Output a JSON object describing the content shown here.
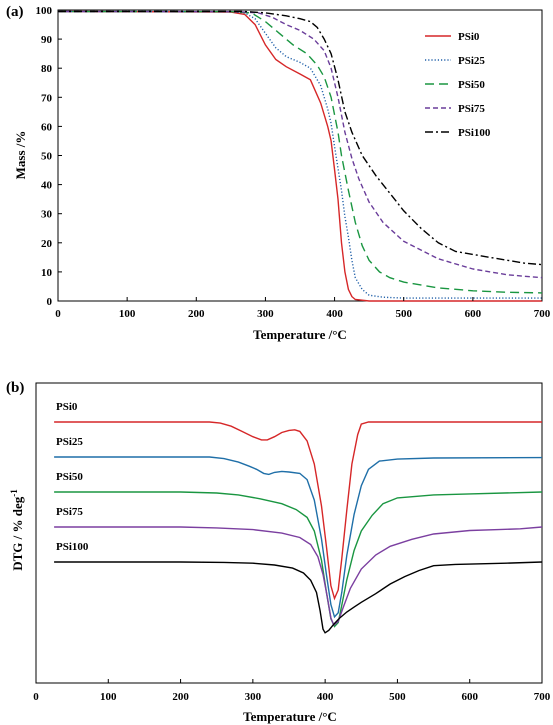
{
  "chart_data": [
    {
      "panel": "(a)",
      "type": "line",
      "xlabel": "Temperature /°C",
      "ylabel": "Mass /%",
      "xlim": [
        0,
        700
      ],
      "ylim": [
        0,
        100
      ],
      "xticks": [
        "0",
        "100",
        "200",
        "300",
        "400",
        "500",
        "600",
        "700"
      ],
      "yticks": [
        "0",
        "10",
        "20",
        "30",
        "40",
        "50",
        "60",
        "70",
        "80",
        "90",
        "100"
      ],
      "grid": false,
      "legend_position": "top-right",
      "series": [
        {
          "name": "PSi0",
          "color": "#d62728",
          "dash": "solid",
          "points": [
            [
              0,
              99.5
            ],
            [
              250,
              99.3
            ],
            [
              270,
              98.5
            ],
            [
              285,
              95
            ],
            [
              300,
              88
            ],
            [
              315,
              83
            ],
            [
              330,
              80.5
            ],
            [
              350,
              78
            ],
            [
              365,
              76
            ],
            [
              380,
              68
            ],
            [
              390,
              60
            ],
            [
              395,
              55
            ],
            [
              400,
              45
            ],
            [
              405,
              35
            ],
            [
              410,
              20
            ],
            [
              415,
              10
            ],
            [
              420,
              4
            ],
            [
              425,
              1.5
            ],
            [
              430,
              0.5
            ],
            [
              450,
              0
            ],
            [
              700,
              0
            ]
          ]
        },
        {
          "name": "PSi25",
          "color": "#1f5fa8",
          "dash": "1.2 2",
          "points": [
            [
              0,
              99.5
            ],
            [
              250,
              99.4
            ],
            [
              270,
              99
            ],
            [
              285,
              97
            ],
            [
              300,
              92
            ],
            [
              315,
              87
            ],
            [
              330,
              84
            ],
            [
              350,
              82
            ],
            [
              365,
              80
            ],
            [
              380,
              74
            ],
            [
              390,
              66
            ],
            [
              395,
              61
            ],
            [
              400,
              53
            ],
            [
              410,
              38
            ],
            [
              415,
              29
            ],
            [
              420,
              22
            ],
            [
              425,
              14
            ],
            [
              430,
              8
            ],
            [
              440,
              4
            ],
            [
              450,
              2
            ],
            [
              470,
              1.3
            ],
            [
              500,
              1
            ],
            [
              700,
              1
            ]
          ]
        },
        {
          "name": "PSi50",
          "color": "#1a9641",
          "dash": "9 5",
          "points": [
            [
              0,
              99.5
            ],
            [
              250,
              99.4
            ],
            [
              280,
              99
            ],
            [
              300,
              96
            ],
            [
              320,
              92
            ],
            [
              340,
              88
            ],
            [
              360,
              85
            ],
            [
              375,
              81
            ],
            [
              385,
              77
            ],
            [
              395,
              70
            ],
            [
              405,
              58
            ],
            [
              410,
              50
            ],
            [
              420,
              38
            ],
            [
              430,
              27
            ],
            [
              440,
              19
            ],
            [
              450,
              14
            ],
            [
              465,
              10
            ],
            [
              480,
              8
            ],
            [
              500,
              6.5
            ],
            [
              550,
              4.5
            ],
            [
              600,
              3.5
            ],
            [
              650,
              3
            ],
            [
              700,
              2.8
            ]
          ]
        },
        {
          "name": "PSi75",
          "color": "#6a3d9a",
          "dash": "5 3",
          "points": [
            [
              0,
              99.5
            ],
            [
              260,
              99.4
            ],
            [
              290,
              99
            ],
            [
              310,
              97.5
            ],
            [
              330,
              95
            ],
            [
              350,
              93
            ],
            [
              370,
              90
            ],
            [
              385,
              86
            ],
            [
              395,
              80
            ],
            [
              405,
              70
            ],
            [
              415,
              58
            ],
            [
              425,
              49
            ],
            [
              435,
              42
            ],
            [
              450,
              34
            ],
            [
              470,
              27
            ],
            [
              500,
              20.5
            ],
            [
              550,
              14.5
            ],
            [
              600,
              11
            ],
            [
              650,
              9
            ],
            [
              700,
              8
            ]
          ]
        },
        {
          "name": "PSi100",
          "color": "#000000",
          "dash": "8 3 2 3",
          "points": [
            [
              0,
              99.5
            ],
            [
              270,
              99.5
            ],
            [
              300,
              99
            ],
            [
              330,
              98
            ],
            [
              350,
              97
            ],
            [
              365,
              96
            ],
            [
              375,
              94
            ],
            [
              385,
              90
            ],
            [
              395,
              85
            ],
            [
              405,
              76
            ],
            [
              415,
              65
            ],
            [
              425,
              58
            ],
            [
              440,
              50
            ],
            [
              460,
              43
            ],
            [
              480,
              37
            ],
            [
              500,
              31
            ],
            [
              525,
              25
            ],
            [
              550,
              20
            ],
            [
              575,
              17
            ],
            [
              600,
              16
            ],
            [
              625,
              15
            ],
            [
              650,
              14
            ],
            [
              675,
              13
            ],
            [
              700,
              12.5
            ]
          ]
        }
      ]
    },
    {
      "panel": "(b)",
      "type": "line",
      "xlabel": "Temperature /°C",
      "ylabel": "DTG / % deg",
      "ylabel_sup": "-1",
      "xlim": [
        0,
        700
      ],
      "xticks": [
        "0",
        "100",
        "200",
        "300",
        "400",
        "500",
        "600",
        "700"
      ],
      "yticks_shown": false,
      "grid": false,
      "series": [
        {
          "name": "PSi0",
          "color": "#d62728",
          "points": [
            [
              25,
              0
            ],
            [
              240,
              0
            ],
            [
              255,
              -0.5
            ],
            [
              270,
              -2
            ],
            [
              285,
              -4.5
            ],
            [
              300,
              -7
            ],
            [
              312,
              -8.5
            ],
            [
              320,
              -8.5
            ],
            [
              330,
              -7
            ],
            [
              340,
              -5
            ],
            [
              350,
              -4
            ],
            [
              358,
              -3.7
            ],
            [
              365,
              -4.5
            ],
            [
              375,
              -9
            ],
            [
              385,
              -20
            ],
            [
              395,
              -40
            ],
            [
              402,
              -60
            ],
            [
              408,
              -78
            ],
            [
              413,
              -84
            ],
            [
              418,
              -80
            ],
            [
              423,
              -65
            ],
            [
              430,
              -42
            ],
            [
              437,
              -20
            ],
            [
              445,
              -6
            ],
            [
              450,
              -1
            ],
            [
              460,
              0
            ],
            [
              700,
              0
            ]
          ]
        },
        {
          "name": "PSi25",
          "color": "#1f6fa8",
          "points": [
            [
              25,
              0
            ],
            [
              240,
              0
            ],
            [
              260,
              -0.8
            ],
            [
              280,
              -2.5
            ],
            [
              295,
              -4.5
            ],
            [
              305,
              -6
            ],
            [
              315,
              -8
            ],
            [
              322,
              -8.5
            ],
            [
              330,
              -7.5
            ],
            [
              340,
              -7
            ],
            [
              350,
              -7.3
            ],
            [
              365,
              -8
            ],
            [
              375,
              -11
            ],
            [
              385,
              -21
            ],
            [
              395,
              -40
            ],
            [
              402,
              -58
            ],
            [
              408,
              -72
            ],
            [
              413,
              -78
            ],
            [
              418,
              -76
            ],
            [
              423,
              -66
            ],
            [
              430,
              -48
            ],
            [
              440,
              -28
            ],
            [
              450,
              -14
            ],
            [
              460,
              -6
            ],
            [
              475,
              -2
            ],
            [
              500,
              -1
            ],
            [
              550,
              -0.5
            ],
            [
              700,
              -0.3
            ]
          ]
        },
        {
          "name": "PSi50",
          "color": "#1a9641",
          "points": [
            [
              25,
              0
            ],
            [
              200,
              0
            ],
            [
              250,
              -0.5
            ],
            [
              280,
              -1.5
            ],
            [
              310,
              -3.5
            ],
            [
              340,
              -6
            ],
            [
              360,
              -9
            ],
            [
              375,
              -13
            ],
            [
              385,
              -20
            ],
            [
              395,
              -35
            ],
            [
              402,
              -52
            ],
            [
              408,
              -65
            ],
            [
              413,
              -69
            ],
            [
              418,
              -67
            ],
            [
              423,
              -58
            ],
            [
              430,
              -45
            ],
            [
              440,
              -30
            ],
            [
              450,
              -20
            ],
            [
              465,
              -12
            ],
            [
              480,
              -6
            ],
            [
              500,
              -3
            ],
            [
              550,
              -1.5
            ],
            [
              600,
              -1
            ],
            [
              700,
              0
            ]
          ]
        },
        {
          "name": "PSi75",
          "color": "#7b3fa0",
          "points": [
            [
              25,
              0
            ],
            [
              200,
              0
            ],
            [
              250,
              -0.5
            ],
            [
              300,
              -1.5
            ],
            [
              340,
              -3.5
            ],
            [
              365,
              -6
            ],
            [
              380,
              -10
            ],
            [
              390,
              -17
            ],
            [
              397,
              -27
            ],
            [
              403,
              -40
            ],
            [
              408,
              -52
            ],
            [
              412,
              -56
            ],
            [
              418,
              -54
            ],
            [
              425,
              -46
            ],
            [
              435,
              -35
            ],
            [
              450,
              -24
            ],
            [
              470,
              -16
            ],
            [
              490,
              -11
            ],
            [
              520,
              -7
            ],
            [
              550,
              -4
            ],
            [
              600,
              -2
            ],
            [
              640,
              -1.5
            ],
            [
              670,
              -1
            ],
            [
              700,
              0
            ]
          ]
        },
        {
          "name": "PSi100",
          "color": "#000000",
          "points": [
            [
              25,
              0
            ],
            [
              200,
              0
            ],
            [
              260,
              -0.3
            ],
            [
              300,
              -1
            ],
            [
              330,
              -2.5
            ],
            [
              355,
              -5
            ],
            [
              370,
              -9
            ],
            [
              380,
              -15
            ],
            [
              388,
              -25
            ],
            [
              393,
              -40
            ],
            [
              397,
              -55
            ],
            [
              400,
              -58
            ],
            [
              405,
              -56
            ],
            [
              412,
              -51
            ],
            [
              420,
              -46
            ],
            [
              430,
              -41
            ],
            [
              440,
              -37
            ],
            [
              450,
              -33
            ],
            [
              470,
              -26
            ],
            [
              490,
              -18
            ],
            [
              510,
              -12
            ],
            [
              530,
              -7
            ],
            [
              550,
              -3
            ],
            [
              580,
              -2
            ],
            [
              650,
              -1
            ],
            [
              700,
              0
            ]
          ]
        }
      ]
    }
  ]
}
